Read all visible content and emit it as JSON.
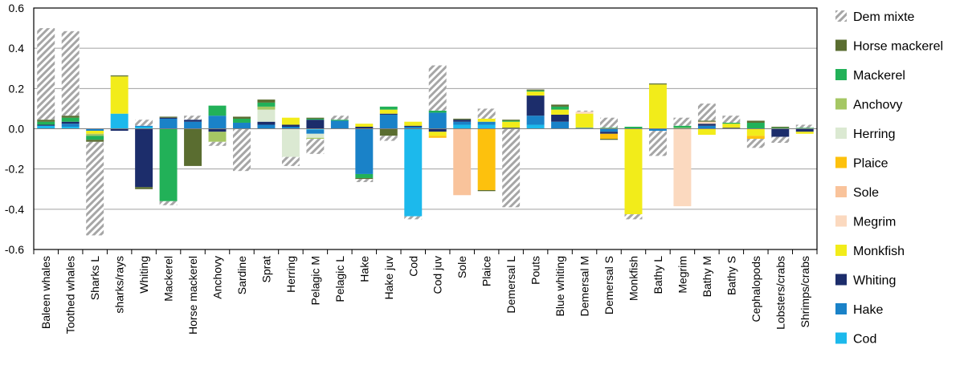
{
  "chart_data": {
    "type": "bar",
    "stacked": true,
    "title": "",
    "xlabel": "",
    "ylabel": "",
    "ylim": [
      -0.6,
      0.6
    ],
    "yticks": [
      "-0.6",
      "-0.4",
      "-0.2",
      "0.0",
      "0.2",
      "0.4",
      "0.6"
    ],
    "grid": true,
    "legend_position": "right",
    "categories": [
      "Baleen whales",
      "Toothed whales",
      "Sharks L",
      "sharks/rays",
      "Whiting",
      "Mackerel",
      "Horse mackerel",
      "Anchovy",
      "Sardine",
      "Sprat",
      "Herring",
      "Pelagic M",
      "Pelagic L",
      "Hake",
      "Hake juv",
      "Cod",
      "Cod juv",
      "Sole",
      "Plaice",
      "Demersal L",
      "Pouts",
      "Blue whiting",
      "Demersal M",
      "Demersal S",
      "Monkfish",
      "Bathy L",
      "Megrim",
      "Bathy M",
      "Bathy S",
      "Cephalopods",
      "Lobsters/crabs",
      "Shrimps/crabs"
    ],
    "series": [
      {
        "name": "Cod",
        "color": "#1cb9ec",
        "hatched": false,
        "values": [
          0.015,
          0.01,
          0,
          0.075,
          0.01,
          0,
          0,
          0,
          0,
          0,
          0,
          -0.005,
          0,
          0,
          0,
          -0.435,
          0,
          0.02,
          0.02,
          0,
          0.02,
          0,
          0,
          0,
          0,
          0,
          0,
          0,
          0,
          0,
          0,
          0
        ]
      },
      {
        "name": "Hake",
        "color": "#1a82c8",
        "hatched": false,
        "values": [
          0,
          0.015,
          -0.01,
          0,
          0.005,
          0.05,
          0.035,
          0.065,
          0.03,
          0.02,
          0.01,
          -0.02,
          0.04,
          -0.225,
          0.07,
          0.01,
          0.08,
          0.015,
          0.015,
          0,
          0.045,
          0.035,
          0.005,
          -0.015,
          0,
          -0.01,
          0,
          0.015,
          0,
          0,
          0,
          0
        ]
      },
      {
        "name": "Whiting",
        "color": "#1c2d6b",
        "hatched": false,
        "values": [
          0.005,
          0.01,
          0,
          -0.01,
          -0.29,
          0.005,
          0.01,
          -0.015,
          0,
          0.015,
          0.01,
          0.045,
          0,
          0.01,
          0.005,
          0.005,
          -0.015,
          0.01,
          0,
          0.005,
          0.1,
          0.035,
          0,
          -0.01,
          0,
          0,
          0,
          0.01,
          0.005,
          0,
          -0.04,
          -0.015
        ]
      },
      {
        "name": "Monkfish",
        "color": "#f2ec1a",
        "hatched": false,
        "values": [
          0,
          0,
          -0.015,
          0.185,
          0,
          0,
          0,
          0,
          0,
          0,
          0.035,
          0,
          0,
          0.015,
          0.02,
          0.02,
          -0.02,
          0,
          0.015,
          0.03,
          0.02,
          0.025,
          0.07,
          0,
          -0.425,
          0.22,
          0,
          -0.03,
          0.02,
          -0.035,
          0,
          -0.01
        ]
      },
      {
        "name": "Megrim",
        "color": "#fbd9bf",
        "hatched": false,
        "values": [
          0,
          0,
          0,
          0,
          0,
          0,
          0,
          0,
          0,
          0,
          0,
          0,
          0,
          0,
          0,
          0,
          0,
          0,
          0,
          0,
          0,
          0,
          0.01,
          0,
          0,
          0,
          -0.385,
          0.01,
          0,
          0,
          0,
          0
        ]
      },
      {
        "name": "Sole",
        "color": "#f9c39b",
        "hatched": false,
        "values": [
          0,
          0,
          0,
          0,
          0,
          0,
          0,
          0,
          0,
          0,
          0,
          0,
          0,
          0,
          0,
          0,
          0,
          -0.33,
          0,
          0,
          0,
          0,
          0,
          0,
          0,
          0,
          0,
          0,
          0,
          0,
          0,
          0
        ]
      },
      {
        "name": "Plaice",
        "color": "#fdc10d",
        "hatched": false,
        "values": [
          0,
          0,
          0,
          0,
          0,
          0,
          0,
          0,
          0,
          0,
          0,
          0,
          0,
          0,
          0,
          0,
          -0.01,
          0,
          -0.305,
          0,
          0,
          0,
          0,
          -0.025,
          0,
          0,
          0,
          0,
          0,
          -0.015,
          0,
          0
        ]
      },
      {
        "name": "Herring",
        "color": "#dbe9d2",
        "hatched": false,
        "values": [
          0,
          0,
          0,
          0,
          0,
          0,
          0,
          0,
          0,
          0.06,
          -0.14,
          -0.02,
          0,
          0,
          0,
          0,
          0,
          0,
          0,
          0,
          0,
          0,
          0,
          0,
          0,
          0,
          0,
          0,
          0,
          0,
          0,
          0
        ]
      },
      {
        "name": "Anchovy",
        "color": "#a5c764",
        "hatched": false,
        "values": [
          0,
          0,
          -0.01,
          0,
          0,
          0,
          0,
          -0.05,
          0,
          0.015,
          0,
          -0.005,
          0,
          0,
          0,
          0,
          0,
          0,
          0,
          0,
          0,
          0,
          0,
          0,
          0,
          0,
          0.005,
          0,
          0,
          0,
          0,
          0
        ]
      },
      {
        "name": "Mackerel",
        "color": "#22b158",
        "hatched": false,
        "values": [
          0.015,
          0.02,
          -0.02,
          0,
          0,
          -0.36,
          0,
          0.05,
          0.02,
          0.02,
          0,
          0.005,
          0.005,
          -0.02,
          0.015,
          0,
          0.01,
          0,
          0,
          0.005,
          0.005,
          0.015,
          0,
          0.005,
          0.01,
          0,
          0.01,
          0,
          0.005,
          0.03,
          0.005,
          0.005
        ]
      },
      {
        "name": "Horse mackerel",
        "color": "#5a6d30",
        "hatched": false,
        "values": [
          0.01,
          0.01,
          -0.01,
          0.005,
          -0.01,
          0.005,
          -0.185,
          0,
          0.01,
          0.015,
          0,
          0.005,
          0,
          -0.005,
          -0.035,
          0,
          0,
          0.005,
          -0.005,
          0.005,
          0.005,
          0.01,
          0,
          -0.005,
          0,
          0.005,
          0,
          0.005,
          0,
          0.01,
          0.005,
          0
        ]
      },
      {
        "name": "Dem mixte",
        "color": "#bdbdbd",
        "hatched": true,
        "values": [
          0.455,
          0.42,
          -0.465,
          0,
          0.03,
          -0.02,
          0.02,
          -0.02,
          -0.21,
          0,
          -0.045,
          -0.075,
          0.02,
          -0.015,
          -0.025,
          -0.015,
          0.225,
          0,
          0.05,
          -0.39,
          0,
          0,
          0.005,
          0.05,
          -0.025,
          -0.125,
          0.04,
          0.085,
          0.035,
          -0.045,
          -0.03,
          0.015
        ]
      }
    ]
  }
}
